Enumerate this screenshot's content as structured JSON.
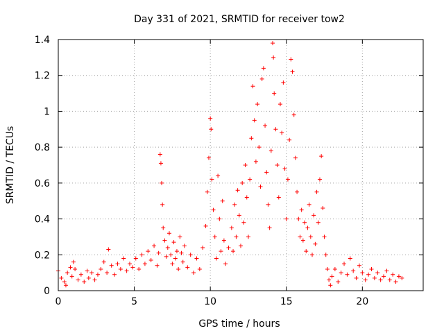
{
  "chart_data": {
    "type": "scatter",
    "title": "Day 331 of 2021, SRMTID for receiver tow2",
    "xlabel": "GPS time / hours",
    "ylabel": "SRMTID / TECUs",
    "xlim": [
      0,
      24
    ],
    "ylim": [
      0,
      1.4
    ],
    "xticks": [
      0,
      5,
      10,
      15,
      20
    ],
    "xtick_labels": [
      "0",
      "5",
      "10",
      "15",
      "20"
    ],
    "yticks": [
      0,
      0.2,
      0.4,
      0.6,
      0.8,
      1.0,
      1.2,
      1.4
    ],
    "ytick_labels": [
      "0",
      "0.2",
      "0.4",
      "0.6",
      "0.8",
      "1",
      "1.2",
      "1.4"
    ],
    "grid": true,
    "marker": "+",
    "color": "#ff0000",
    "series": [
      {
        "name": "SRMTID",
        "points": [
          [
            0.0,
            0.11
          ],
          [
            0.2,
            0.07
          ],
          [
            0.4,
            0.05
          ],
          [
            0.5,
            0.03
          ],
          [
            0.6,
            0.1
          ],
          [
            0.8,
            0.13
          ],
          [
            0.9,
            0.08
          ],
          [
            1.0,
            0.16
          ],
          [
            1.1,
            0.12
          ],
          [
            1.3,
            0.06
          ],
          [
            1.5,
            0.09
          ],
          [
            1.7,
            0.05
          ],
          [
            1.9,
            0.11
          ],
          [
            2.0,
            0.07
          ],
          [
            2.2,
            0.1
          ],
          [
            2.4,
            0.06
          ],
          [
            2.6,
            0.09
          ],
          [
            2.8,
            0.12
          ],
          [
            3.0,
            0.16
          ],
          [
            3.2,
            0.1
          ],
          [
            3.3,
            0.23
          ],
          [
            3.5,
            0.14
          ],
          [
            3.7,
            0.09
          ],
          [
            3.9,
            0.15
          ],
          [
            4.1,
            0.12
          ],
          [
            4.3,
            0.18
          ],
          [
            4.5,
            0.11
          ],
          [
            4.7,
            0.15
          ],
          [
            4.9,
            0.13
          ],
          [
            5.1,
            0.18
          ],
          [
            5.3,
            0.12
          ],
          [
            5.5,
            0.2
          ],
          [
            5.7,
            0.15
          ],
          [
            5.9,
            0.22
          ],
          [
            6.1,
            0.17
          ],
          [
            6.3,
            0.25
          ],
          [
            6.5,
            0.14
          ],
          [
            6.6,
            0.21
          ],
          [
            6.7,
            0.76
          ],
          [
            6.75,
            0.71
          ],
          [
            6.8,
            0.6
          ],
          [
            6.85,
            0.48
          ],
          [
            6.9,
            0.35
          ],
          [
            7.0,
            0.28
          ],
          [
            7.1,
            0.19
          ],
          [
            7.2,
            0.24
          ],
          [
            7.3,
            0.32
          ],
          [
            7.4,
            0.2
          ],
          [
            7.5,
            0.15
          ],
          [
            7.6,
            0.27
          ],
          [
            7.7,
            0.18
          ],
          [
            7.8,
            0.22
          ],
          [
            7.9,
            0.12
          ],
          [
            8.0,
            0.3
          ],
          [
            8.1,
            0.21
          ],
          [
            8.2,
            0.16
          ],
          [
            8.3,
            0.25
          ],
          [
            8.5,
            0.13
          ],
          [
            8.7,
            0.2
          ],
          [
            8.9,
            0.1
          ],
          [
            9.1,
            0.18
          ],
          [
            9.3,
            0.12
          ],
          [
            9.5,
            0.24
          ],
          [
            9.7,
            0.36
          ],
          [
            9.8,
            0.55
          ],
          [
            9.9,
            0.74
          ],
          [
            10.0,
            0.96
          ],
          [
            10.05,
            0.9
          ],
          [
            10.1,
            0.62
          ],
          [
            10.2,
            0.45
          ],
          [
            10.3,
            0.3
          ],
          [
            10.4,
            0.18
          ],
          [
            10.5,
            0.64
          ],
          [
            10.6,
            0.4
          ],
          [
            10.7,
            0.22
          ],
          [
            10.8,
            0.5
          ],
          [
            10.9,
            0.28
          ],
          [
            11.0,
            0.15
          ],
          [
            11.2,
            0.24
          ],
          [
            11.4,
            0.35
          ],
          [
            11.5,
            0.22
          ],
          [
            11.6,
            0.48
          ],
          [
            11.7,
            0.3
          ],
          [
            11.8,
            0.56
          ],
          [
            11.9,
            0.42
          ],
          [
            12.0,
            0.25
          ],
          [
            12.1,
            0.6
          ],
          [
            12.2,
            0.38
          ],
          [
            12.3,
            0.7
          ],
          [
            12.4,
            0.52
          ],
          [
            12.5,
            0.3
          ],
          [
            12.6,
            0.62
          ],
          [
            12.7,
            0.85
          ],
          [
            12.8,
            1.14
          ],
          [
            12.9,
            0.95
          ],
          [
            13.0,
            0.72
          ],
          [
            13.1,
            1.04
          ],
          [
            13.2,
            0.8
          ],
          [
            13.3,
            0.58
          ],
          [
            13.4,
            1.18
          ],
          [
            13.5,
            1.24
          ],
          [
            13.6,
            0.92
          ],
          [
            13.7,
            0.66
          ],
          [
            13.8,
            0.48
          ],
          [
            13.9,
            0.35
          ],
          [
            14.0,
            0.78
          ],
          [
            14.1,
            1.38
          ],
          [
            14.15,
            1.3
          ],
          [
            14.2,
            1.1
          ],
          [
            14.3,
            0.9
          ],
          [
            14.4,
            0.7
          ],
          [
            14.5,
            0.52
          ],
          [
            14.6,
            1.04
          ],
          [
            14.7,
            0.88
          ],
          [
            14.8,
            1.16
          ],
          [
            14.9,
            0.68
          ],
          [
            15.0,
            0.4
          ],
          [
            15.1,
            0.62
          ],
          [
            15.2,
            0.84
          ],
          [
            15.3,
            1.29
          ],
          [
            15.4,
            1.22
          ],
          [
            15.5,
            0.98
          ],
          [
            15.6,
            0.74
          ],
          [
            15.7,
            0.55
          ],
          [
            15.8,
            0.4
          ],
          [
            15.9,
            0.3
          ],
          [
            16.0,
            0.45
          ],
          [
            16.1,
            0.28
          ],
          [
            16.2,
            0.38
          ],
          [
            16.3,
            0.22
          ],
          [
            16.4,
            0.35
          ],
          [
            16.5,
            0.48
          ],
          [
            16.6,
            0.3
          ],
          [
            16.7,
            0.2
          ],
          [
            16.8,
            0.42
          ],
          [
            16.9,
            0.26
          ],
          [
            17.0,
            0.55
          ],
          [
            17.1,
            0.38
          ],
          [
            17.2,
            0.62
          ],
          [
            17.3,
            0.75
          ],
          [
            17.4,
            0.46
          ],
          [
            17.5,
            0.3
          ],
          [
            17.6,
            0.2
          ],
          [
            17.7,
            0.12
          ],
          [
            17.8,
            0.06
          ],
          [
            17.9,
            0.03
          ],
          [
            18.0,
            0.08
          ],
          [
            18.2,
            0.12
          ],
          [
            18.4,
            0.05
          ],
          [
            18.6,
            0.1
          ],
          [
            18.8,
            0.15
          ],
          [
            19.0,
            0.09
          ],
          [
            19.2,
            0.18
          ],
          [
            19.4,
            0.11
          ],
          [
            19.6,
            0.07
          ],
          [
            19.8,
            0.14
          ],
          [
            20.0,
            0.1
          ],
          [
            20.2,
            0.06
          ],
          [
            20.4,
            0.09
          ],
          [
            20.6,
            0.12
          ],
          [
            20.8,
            0.07
          ],
          [
            21.0,
            0.1
          ],
          [
            21.2,
            0.06
          ],
          [
            21.4,
            0.08
          ],
          [
            21.6,
            0.11
          ],
          [
            21.8,
            0.06
          ],
          [
            22.0,
            0.09
          ],
          [
            22.2,
            0.05
          ],
          [
            22.4,
            0.08
          ],
          [
            22.6,
            0.07
          ]
        ]
      }
    ]
  }
}
